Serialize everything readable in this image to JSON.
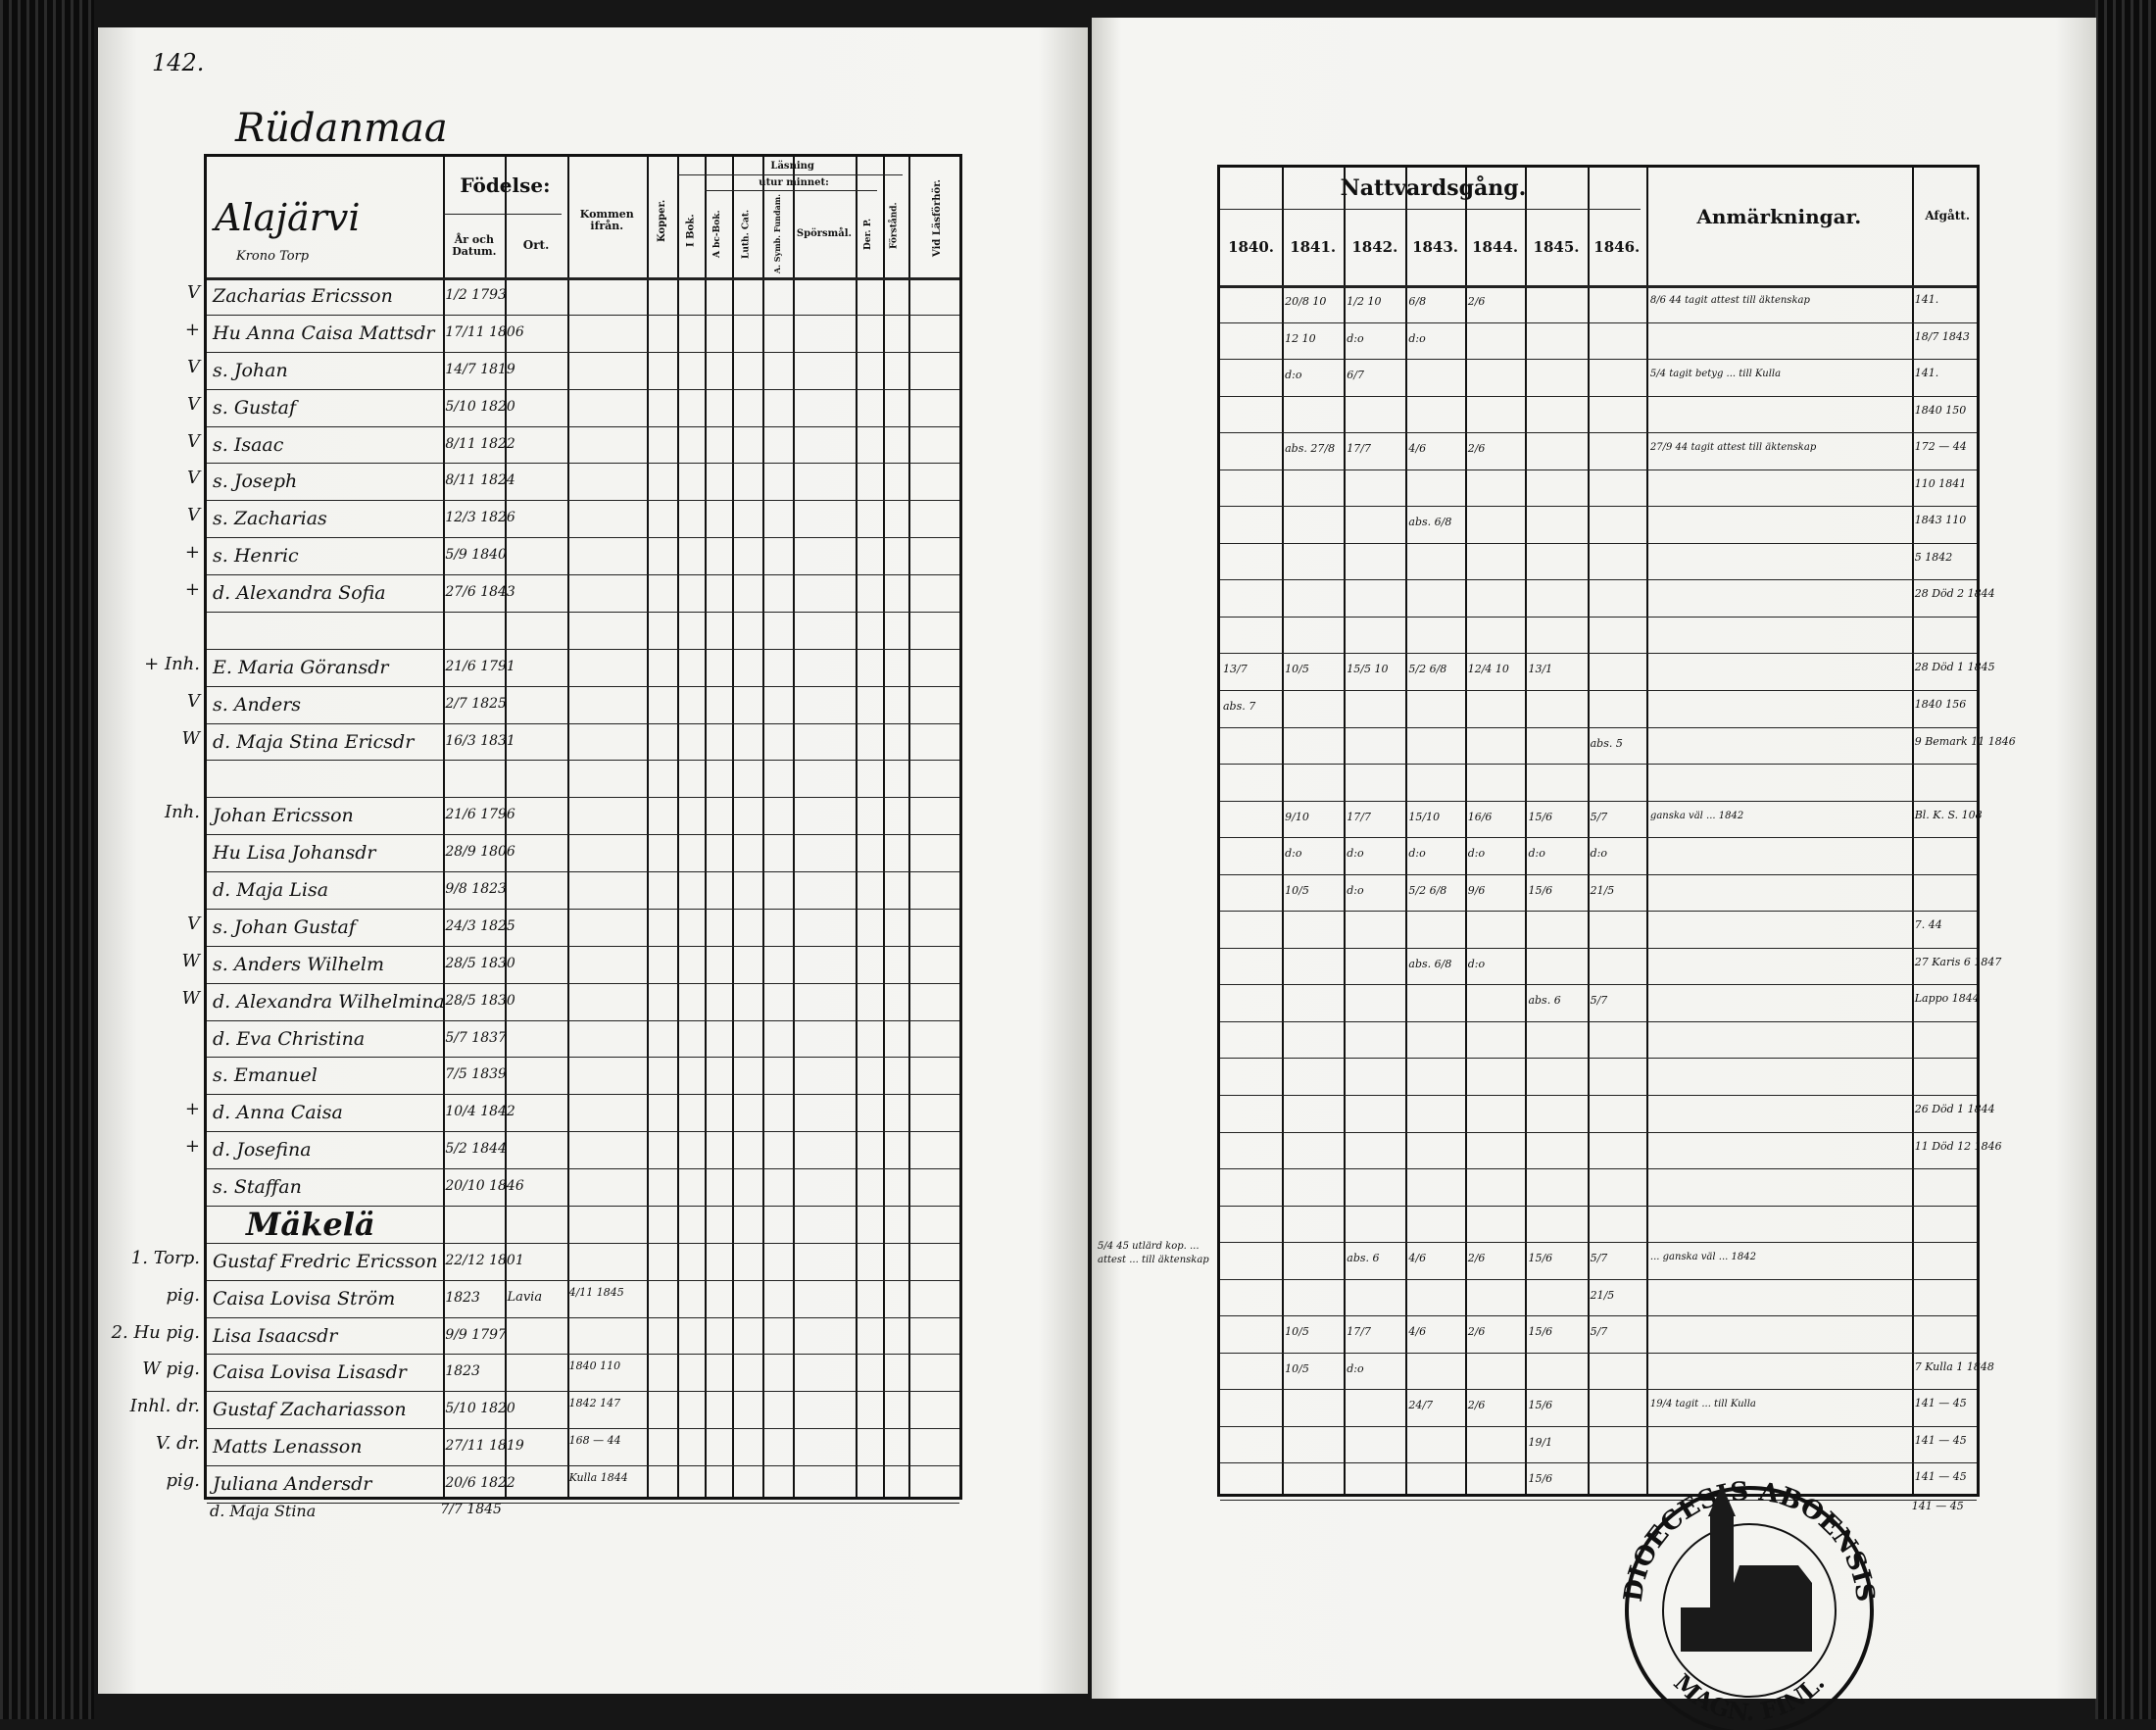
{
  "left_page": {
    "page_number": "142.",
    "village": "Rüdanmaa",
    "parish_heading": "Alajärvi",
    "parish_sub": "Krono Torp",
    "headers": {
      "fodelse": "Födelse:",
      "ar_datum": "År och Datum.",
      "ort": "Ort.",
      "kommen": "Kommen ifrån.",
      "kopper": "Kopper.",
      "lasning": "Läsning",
      "utur_minnet": "utur minnet:",
      "i_bok": "I Bok.",
      "abc": "A bc-Bok.",
      "luth_cat": "Luth. Cat.",
      "a_symb": "A. Symb. Fundam.",
      "sporsmal": "Spörsmål.",
      "der_p": "Der. P.",
      "forstand": "Förstånd.",
      "vid_lasforhor": "Vid Läsförhör."
    },
    "rows": [
      {
        "mark": "V",
        "name": "Zacharias Ericsson",
        "born": "1/2 1793"
      },
      {
        "mark": "+",
        "name": "Hu Anna Caisa Mattsdr",
        "born": "17/11 1806"
      },
      {
        "mark": "V",
        "name": "s. Johan",
        "born": "14/7 1819"
      },
      {
        "mark": "V",
        "name": "s. Gustaf",
        "born": "5/10 1820"
      },
      {
        "mark": "V",
        "name": "s. Isaac",
        "born": "8/11 1822"
      },
      {
        "mark": "V",
        "name": "s. Joseph",
        "born": "8/11 1824"
      },
      {
        "mark": "V",
        "name": "s. Zacharias",
        "born": "12/3 1826"
      },
      {
        "mark": "+",
        "name": "s. Henric",
        "born": "5/9 1840"
      },
      {
        "mark": "+",
        "name": "d. Alexandra Sofia",
        "born": "27/6 1843"
      },
      {
        "mark": "",
        "name": "",
        "born": ""
      },
      {
        "mark": "+ Inh.",
        "name": "E. Maria Göransdr",
        "born": "21/6 1791"
      },
      {
        "mark": "V",
        "name": "s. Anders",
        "born": "2/7 1825"
      },
      {
        "mark": "W",
        "name": "d. Maja Stina Ericsdr",
        "born": "16/3 1831"
      },
      {
        "mark": "",
        "name": "",
        "born": ""
      },
      {
        "mark": "Inh.",
        "name": "Johan Ericsson",
        "born": "21/6 1796"
      },
      {
        "mark": "",
        "name": "Hu Lisa Johansdr",
        "born": "28/9 1806"
      },
      {
        "mark": "",
        "name": "d. Maja Lisa",
        "born": "9/8 1823"
      },
      {
        "mark": "V",
        "name": "s. Johan Gustaf",
        "born": "24/3 1825"
      },
      {
        "mark": "W",
        "name": "s. Anders Wilhelm",
        "born": "28/5 1830"
      },
      {
        "mark": "W",
        "name": "d. Alexandra Wilhelmina",
        "born": "28/5 1830"
      },
      {
        "mark": "",
        "name": "d. Eva Christina",
        "born": "5/7 1837"
      },
      {
        "mark": "",
        "name": "s. Emanuel",
        "born": "7/5 1839"
      },
      {
        "mark": "+",
        "name": "d. Anna Caisa",
        "born": "10/4 1842"
      },
      {
        "mark": "+",
        "name": "d. Josefina",
        "born": "5/2 1844"
      },
      {
        "mark": "",
        "name": "s. Staffan",
        "born": "20/10 1846"
      },
      {
        "mark": "",
        "name": "Mäkelä",
        "born": "",
        "heading": true
      },
      {
        "mark": "1. Torp.",
        "name": "Gustaf Fredric Ericsson",
        "born": "22/12 1801"
      },
      {
        "mark": "pig.",
        "name": "Caisa Lovisa Ström",
        "born": "1823",
        "ort": "Lavia",
        "kommen": "4/11 1845"
      },
      {
        "mark": "2. Hu pig.",
        "name": "Lisa Isaacsdr",
        "born": "9/9 1797"
      },
      {
        "mark": "W pig.",
        "name": "Caisa Lovisa Lisasdr",
        "born": "1823",
        "kommen": "1840 110"
      },
      {
        "mark": "Inhl. dr.",
        "name": "Gustaf Zachariasson",
        "born": "5/10 1820",
        "kommen": "1842 147"
      },
      {
        "mark": "V. dr.",
        "name": "Matts Lenasson",
        "born": "27/11 1819",
        "kommen": "168 — 44"
      },
      {
        "mark": "pig.",
        "name": "Juliana Andersdr",
        "born": "20/6 1822",
        "kommen": "Kulla 1844"
      }
    ],
    "after_row": {
      "name": "d. Maja Stina",
      "born": "7/7 1845"
    }
  },
  "right_page": {
    "headers": {
      "nattvard": "Nattvardsgång.",
      "years": [
        "1840.",
        "1841.",
        "1842.",
        "1843.",
        "1844.",
        "1845.",
        "1846."
      ],
      "anmarkningar": "Anmärkningar.",
      "afgatt": "Afgått."
    },
    "rows": [
      {
        "n": [
          "",
          "20/8 10",
          "1/2 10",
          "6/8",
          "2/6",
          "",
          ""
        ],
        "anm": "8/6 44 tagit attest till äktenskap",
        "afg": "141."
      },
      {
        "n": [
          "",
          "12 10",
          "d:o",
          "d:o",
          "",
          "",
          ""
        ],
        "anm": "",
        "afg": "18/7 1843"
      },
      {
        "n": [
          "",
          "d:o",
          "6/7",
          "",
          "",
          "",
          ""
        ],
        "anm": "5/4 tagit betyg ... till Kulla",
        "afg": "141."
      },
      {
        "n": [
          "",
          "",
          "",
          "",
          "",
          "",
          ""
        ],
        "anm": "",
        "afg": "1840 150"
      },
      {
        "n": [
          "",
          "abs. 27/8",
          "17/7",
          "4/6",
          "2/6",
          "",
          ""
        ],
        "anm": "27/9 44 tagit attest till äktenskap",
        "afg": "172 — 44"
      },
      {
        "n": [
          "",
          "",
          "",
          "",
          "",
          "",
          ""
        ],
        "anm": "",
        "afg": "110 1841"
      },
      {
        "n": [
          "",
          "",
          "",
          "abs. 6/8",
          "",
          "",
          ""
        ],
        "anm": "",
        "afg": "1843 110"
      },
      {
        "n": [
          "",
          "",
          "",
          "",
          "",
          "",
          ""
        ],
        "anm": "",
        "afg": "5 1842"
      },
      {
        "n": [
          "",
          "",
          "",
          "",
          "",
          "",
          ""
        ],
        "anm": "",
        "afg": "28 Död 2 1844"
      },
      {
        "n": [
          "",
          "",
          "",
          "",
          "",
          "",
          ""
        ],
        "anm": "",
        "afg": ""
      },
      {
        "n": [
          "13/7",
          "10/5",
          "15/5 10",
          "5/2 6/8",
          "12/4 10",
          "13/1",
          ""
        ],
        "anm": "",
        "afg": "28 Död 1 1845"
      },
      {
        "n": [
          "abs. 7",
          "",
          "",
          "",
          "",
          "",
          ""
        ],
        "anm": "",
        "afg": "1840 156"
      },
      {
        "n": [
          "",
          "",
          "",
          "",
          "",
          "",
          "abs. 5"
        ],
        "anm": "",
        "afg": "9 Bemark 11 1846"
      },
      {
        "n": [
          "",
          "",
          "",
          "",
          "",
          "",
          ""
        ],
        "anm": "",
        "afg": ""
      },
      {
        "n": [
          "",
          "9/10",
          "17/7",
          "15/10",
          "16/6",
          "15/6",
          "5/7"
        ],
        "anm": "ganska väl ... 1842",
        "afg": "Bl. K. S. 108"
      },
      {
        "n": [
          "",
          "d:o",
          "d:o",
          "d:o",
          "d:o",
          "d:o",
          "d:o"
        ],
        "anm": "",
        "afg": ""
      },
      {
        "n": [
          "",
          "10/5",
          "d:o",
          "5/2 6/8",
          "9/6",
          "15/6",
          "21/5"
        ],
        "anm": "",
        "afg": ""
      },
      {
        "n": [
          "",
          "",
          "",
          "",
          "",
          "",
          ""
        ],
        "anm": "",
        "afg": "7. 44"
      },
      {
        "n": [
          "",
          "",
          "",
          "abs. 6/8",
          "d:o",
          "",
          ""
        ],
        "anm": "",
        "afg": "27 Karis 6 1847"
      },
      {
        "n": [
          "",
          "",
          "",
          "",
          "",
          "abs. 6",
          "5/7"
        ],
        "anm": "",
        "afg": "Lappo 1844"
      },
      {
        "n": [
          "",
          "",
          "",
          "",
          "",
          "",
          ""
        ],
        "anm": "",
        "afg": ""
      },
      {
        "n": [
          "",
          "",
          "",
          "",
          "",
          "",
          ""
        ],
        "anm": "",
        "afg": ""
      },
      {
        "n": [
          "",
          "",
          "",
          "",
          "",
          "",
          ""
        ],
        "anm": "",
        "afg": "26 Död 1 1844"
      },
      {
        "n": [
          "",
          "",
          "",
          "",
          "",
          "",
          ""
        ],
        "anm": "",
        "afg": "11 Död 12 1846"
      },
      {
        "n": [
          "",
          "",
          "",
          "",
          "",
          "",
          ""
        ],
        "anm": "",
        "afg": ""
      },
      {
        "n": [
          "",
          "",
          "",
          "",
          "",
          "",
          ""
        ],
        "anm": "",
        "afg": ""
      },
      {
        "n": [
          "",
          "",
          "abs. 6",
          "4/6",
          "2/6",
          "15/6",
          "5/7"
        ],
        "anm": "... ganska väl ... 1842",
        "afg": ""
      },
      {
        "n": [
          "",
          "",
          "",
          "",
          "",
          "",
          "21/5"
        ],
        "anm": "",
        "afg": ""
      },
      {
        "n": [
          "",
          "10/5",
          "17/7",
          "4/6",
          "2/6",
          "15/6",
          "5/7"
        ],
        "anm": "",
        "afg": ""
      },
      {
        "n": [
          "",
          "10/5",
          "d:o",
          "",
          "",
          "",
          ""
        ],
        "anm": "",
        "afg": "7 Kulla 1 1848"
      },
      {
        "n": [
          "",
          "",
          "",
          "24/7",
          "2/6",
          "15/6",
          ""
        ],
        "anm": "19/4 tagit ... till Kulla",
        "afg": "141 — 45"
      },
      {
        "n": [
          "",
          "",
          "",
          "",
          "",
          "19/1",
          ""
        ],
        "anm": "",
        "afg": "141 — 45"
      },
      {
        "n": [
          "",
          "",
          "",
          "",
          "",
          "15/6",
          ""
        ],
        "anm": "",
        "afg": "141 — 45"
      }
    ],
    "after_row": {
      "afg": "141 — 45"
    },
    "margin_note": "5/4 45 utlärd kop. ... attest ... till äktenskap"
  },
  "stamp": {
    "text_top": "DIOECESIS ABOENSIS",
    "text_bottom": "MAGN. FINL."
  },
  "colors": {
    "paper": "#f3f3f0",
    "ink": "#111111",
    "scan_edge": "#161616"
  }
}
